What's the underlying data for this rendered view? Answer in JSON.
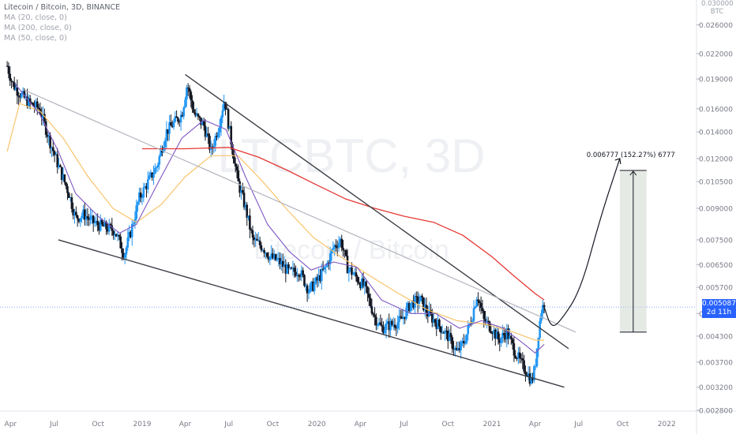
{
  "legend": {
    "title": "Litecoin / Bitcoin, 3D, BINANCE",
    "ma20": "MA (20, close, 0)",
    "ma200": "MA (200, close, 0)",
    "ma50": "MA (50, close, 0)"
  },
  "watermark": {
    "symbol": "LTCBTC, 3D",
    "name": "Litecoin / Bitcoin"
  },
  "corner": {
    "top_value": "0.030000",
    "unit": "BTC"
  },
  "price_tag": {
    "price": "0.005087",
    "countdown": "2d 11h"
  },
  "annotation": {
    "text": "0.006777 (152.27%) 6777"
  },
  "colors": {
    "up": "#2196f3",
    "down": "#131722",
    "ma20": "#7e57c2",
    "ma50": "#f9c46b",
    "ma200": "#e53935",
    "current_price_line": "#2962ff",
    "trendline": "#3c3f46",
    "midline": "#b2b5be"
  },
  "chart_data": {
    "type": "candlestick",
    "title": "Litecoin / Bitcoin, 3D, BINANCE",
    "y_axis": {
      "scale": "log",
      "ticks": [
        "0.030000",
        "0.026000",
        "0.022000",
        "0.019000",
        "0.016000",
        "0.014000",
        "0.012000",
        "0.010500",
        "0.009000",
        "0.007500",
        "0.006500",
        "0.005700",
        "0.004900",
        "0.004300",
        "0.003700",
        "0.003200",
        "0.002800"
      ],
      "ylim": [
        0.0028,
        0.03
      ]
    },
    "x_axis": {
      "ticks": [
        "Apr",
        "Jul",
        "Oct",
        "2019",
        "Apr",
        "Jul",
        "Oct",
        "2020",
        "Apr",
        "Jul",
        "Oct",
        "2021",
        "Apr",
        "Jul",
        "Oct",
        "2022"
      ]
    },
    "current_price": 0.005087,
    "price_path": [
      [
        "2018-03-25",
        0.0205
      ],
      [
        "2018-04-05",
        0.0185
      ],
      [
        "2018-04-20",
        0.0175
      ],
      [
        "2018-05-10",
        0.0165
      ],
      [
        "2018-06-01",
        0.016
      ],
      [
        "2018-06-20",
        0.0135
      ],
      [
        "2018-07-10",
        0.0115
      ],
      [
        "2018-08-01",
        0.0098
      ],
      [
        "2018-08-15",
        0.0085
      ],
      [
        "2018-09-01",
        0.0087
      ],
      [
        "2018-09-20",
        0.0083
      ],
      [
        "2018-10-10",
        0.0081
      ],
      [
        "2018-11-05",
        0.0079
      ],
      [
        "2018-11-25",
        0.0069
      ],
      [
        "2018-12-10",
        0.008
      ],
      [
        "2018-12-25",
        0.0095
      ],
      [
        "2019-01-10",
        0.0103
      ],
      [
        "2019-02-01",
        0.0115
      ],
      [
        "2019-02-20",
        0.014
      ],
      [
        "2019-03-10",
        0.0148
      ],
      [
        "2019-03-25",
        0.0155
      ],
      [
        "2019-04-05",
        0.0185
      ],
      [
        "2019-04-20",
        0.0155
      ],
      [
        "2019-05-10",
        0.0145
      ],
      [
        "2019-05-25",
        0.0125
      ],
      [
        "2019-06-10",
        0.0145
      ],
      [
        "2019-06-22",
        0.017
      ],
      [
        "2019-07-05",
        0.0135
      ],
      [
        "2019-07-20",
        0.0105
      ],
      [
        "2019-08-05",
        0.009
      ],
      [
        "2019-08-20",
        0.0075
      ],
      [
        "2019-09-10",
        0.0072
      ],
      [
        "2019-09-25",
        0.0068
      ],
      [
        "2019-10-15",
        0.0066
      ],
      [
        "2019-11-05",
        0.0062
      ],
      [
        "2019-11-25",
        0.0063
      ],
      [
        "2019-12-15",
        0.0056
      ],
      [
        "2020-01-01",
        0.0059
      ],
      [
        "2020-01-20",
        0.0064
      ],
      [
        "2020-02-05",
        0.0072
      ],
      [
        "2020-02-20",
        0.0075
      ],
      [
        "2020-03-05",
        0.0064
      ],
      [
        "2020-03-20",
        0.0061
      ],
      [
        "2020-04-10",
        0.0057
      ],
      [
        "2020-05-01",
        0.0048
      ],
      [
        "2020-05-15",
        0.0045
      ],
      [
        "2020-06-05",
        0.0046
      ],
      [
        "2020-06-25",
        0.0047
      ],
      [
        "2020-07-15",
        0.0052
      ],
      [
        "2020-08-05",
        0.0053
      ],
      [
        "2020-08-20",
        0.0049
      ],
      [
        "2020-09-10",
        0.0046
      ],
      [
        "2020-10-01",
        0.0043
      ],
      [
        "2020-10-20",
        0.0039
      ],
      [
        "2020-11-05",
        0.0042
      ],
      [
        "2020-11-20",
        0.0048
      ],
      [
        "2020-12-01",
        0.0055
      ],
      [
        "2020-12-15",
        0.0047
      ],
      [
        "2021-01-01",
        0.0045
      ],
      [
        "2021-01-15",
        0.0042
      ],
      [
        "2021-02-01",
        0.0044
      ],
      [
        "2021-02-15",
        0.004
      ],
      [
        "2021-03-01",
        0.0037
      ],
      [
        "2021-03-15",
        0.0035
      ],
      [
        "2021-03-25",
        0.0033
      ],
      [
        "2021-04-01",
        0.0036
      ],
      [
        "2021-04-08",
        0.0044
      ],
      [
        "2021-04-15",
        0.0051
      ],
      [
        "2021-04-20",
        0.005087
      ]
    ],
    "ma20_path": [
      [
        "2018-04-10",
        0.0185
      ],
      [
        "2018-06-01",
        0.0155
      ],
      [
        "2018-07-10",
        0.0125
      ],
      [
        "2018-08-15",
        0.0098
      ],
      [
        "2018-10-01",
        0.0086
      ],
      [
        "2018-11-15",
        0.0078
      ],
      [
        "2018-12-20",
        0.0082
      ],
      [
        "2019-02-10",
        0.0108
      ],
      [
        "2019-03-25",
        0.0135
      ],
      [
        "2019-05-10",
        0.015
      ],
      [
        "2019-06-25",
        0.0142
      ],
      [
        "2019-08-05",
        0.0108
      ],
      [
        "2019-09-20",
        0.0082
      ],
      [
        "2019-11-05",
        0.007
      ],
      [
        "2019-12-20",
        0.0063
      ],
      [
        "2020-02-05",
        0.0066
      ],
      [
        "2020-03-25",
        0.0064
      ],
      [
        "2020-05-15",
        0.0053
      ],
      [
        "2020-07-15",
        0.0049
      ],
      [
        "2020-09-05",
        0.0049
      ],
      [
        "2020-10-25",
        0.0045
      ],
      [
        "2020-12-10",
        0.0047
      ],
      [
        "2021-01-25",
        0.0045
      ],
      [
        "2021-03-10",
        0.0041
      ],
      [
        "2021-04-01",
        0.0039
      ],
      [
        "2021-04-20",
        0.0041
      ]
    ],
    "ma50_path": [
      [
        "2018-03-25",
        0.0125
      ],
      [
        "2018-04-20",
        0.0165
      ],
      [
        "2018-06-01",
        0.0158
      ],
      [
        "2018-07-20",
        0.0135
      ],
      [
        "2018-09-10",
        0.0108
      ],
      [
        "2018-11-01",
        0.009
      ],
      [
        "2018-12-20",
        0.0083
      ],
      [
        "2019-02-10",
        0.0092
      ],
      [
        "2019-04-01",
        0.0108
      ],
      [
        "2019-05-25",
        0.0122
      ],
      [
        "2019-07-20",
        0.0122
      ],
      [
        "2019-09-10",
        0.0105
      ],
      [
        "2019-11-01",
        0.0089
      ],
      [
        "2019-12-25",
        0.0076
      ],
      [
        "2020-02-20",
        0.0068
      ],
      [
        "2020-04-20",
        0.0061
      ],
      [
        "2020-06-20",
        0.0055
      ],
      [
        "2020-08-20",
        0.005
      ],
      [
        "2020-10-20",
        0.0047
      ],
      [
        "2020-12-20",
        0.0046
      ],
      [
        "2021-02-15",
        0.0044
      ],
      [
        "2021-04-01",
        0.0042
      ],
      [
        "2021-04-20",
        0.0042
      ]
    ],
    "ma200_path": [
      [
        "2019-01-01",
        0.0127
      ],
      [
        "2019-04-01",
        0.0127
      ],
      [
        "2019-07-01",
        0.0128
      ],
      [
        "2019-09-01",
        0.0121
      ],
      [
        "2019-11-01",
        0.0112
      ],
      [
        "2020-01-01",
        0.0103
      ],
      [
        "2020-03-01",
        0.0095
      ],
      [
        "2020-05-01",
        0.009
      ],
      [
        "2020-07-01",
        0.0086
      ],
      [
        "2020-09-01",
        0.0083
      ],
      [
        "2020-11-01",
        0.0077
      ],
      [
        "2021-01-01",
        0.0068
      ],
      [
        "2021-02-15",
        0.0061
      ],
      [
        "2021-04-01",
        0.0055
      ],
      [
        "2021-04-20",
        0.0053
      ]
    ],
    "trendlines": [
      {
        "kind": "upper",
        "points": [
          [
            "2019-04-01",
            0.0195
          ],
          [
            "2021-06-10",
            0.004
          ]
        ]
      },
      {
        "kind": "lower",
        "points": [
          [
            "2018-07-10",
            0.0075
          ],
          [
            "2021-06-01",
            0.0032
          ]
        ]
      },
      {
        "kind": "mid",
        "points": [
          [
            "2018-05-01",
            0.0178
          ],
          [
            "2021-06-25",
            0.0044
          ]
        ]
      }
    ],
    "projection": [
      [
        "2021-04-20",
        0.005087
      ],
      [
        "2021-05-05",
        0.0045
      ],
      [
        "2021-05-25",
        0.0047
      ],
      [
        "2021-07-05",
        0.0056
      ],
      [
        "2021-08-15",
        0.0085
      ],
      [
        "2021-09-25",
        0.012
      ]
    ],
    "measure_box": {
      "from": [
        "2021-09-25",
        0.0044
      ],
      "to": [
        "2021-11-20",
        0.0112
      ]
    }
  }
}
